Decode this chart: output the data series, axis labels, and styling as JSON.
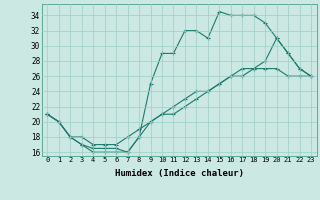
{
  "xlabel": "Humidex (Indice chaleur)",
  "bg_color": "#cce8e2",
  "line_color": "#1a7a6e",
  "xlim": [
    -0.5,
    23.5
  ],
  "ylim": [
    15.5,
    35.5
  ],
  "xticks": [
    0,
    1,
    2,
    3,
    4,
    5,
    6,
    7,
    8,
    9,
    10,
    11,
    12,
    13,
    14,
    15,
    16,
    17,
    18,
    19,
    20,
    21,
    22,
    23
  ],
  "yticks": [
    16,
    18,
    20,
    22,
    24,
    26,
    28,
    30,
    32,
    34
  ],
  "series1_x": [
    0,
    1,
    2,
    3,
    4,
    5,
    6,
    7,
    8,
    9,
    10,
    11,
    12,
    13,
    14,
    15,
    16,
    17,
    18,
    19,
    20,
    21,
    22,
    23
  ],
  "series1_y": [
    21,
    20,
    18,
    17,
    16,
    16,
    16,
    16,
    18,
    25,
    29,
    29,
    32,
    32,
    31,
    34.5,
    34,
    34,
    34,
    33,
    31,
    29,
    27,
    26
  ],
  "series2_x": [
    0,
    1,
    2,
    3,
    4,
    5,
    6,
    7,
    8,
    9,
    10,
    11,
    12,
    13,
    14,
    15,
    16,
    17,
    18,
    19,
    20,
    21,
    22,
    23
  ],
  "series2_y": [
    21,
    20,
    18,
    18,
    17,
    17,
    17,
    18,
    19,
    20,
    21,
    21,
    22,
    23,
    24,
    25,
    26,
    27,
    27,
    28,
    31,
    29,
    27,
    26
  ],
  "series3_x": [
    0,
    1,
    2,
    3,
    4,
    5,
    6,
    7,
    8,
    9,
    10,
    11,
    12,
    13,
    14,
    15,
    16,
    17,
    18,
    19,
    20,
    21,
    22,
    23
  ],
  "series3_y": [
    21,
    20,
    18,
    17,
    16.5,
    16.5,
    16.5,
    16,
    18,
    20,
    21,
    22,
    23,
    24,
    24,
    25,
    26,
    26,
    27,
    27,
    27,
    26,
    26,
    26
  ]
}
